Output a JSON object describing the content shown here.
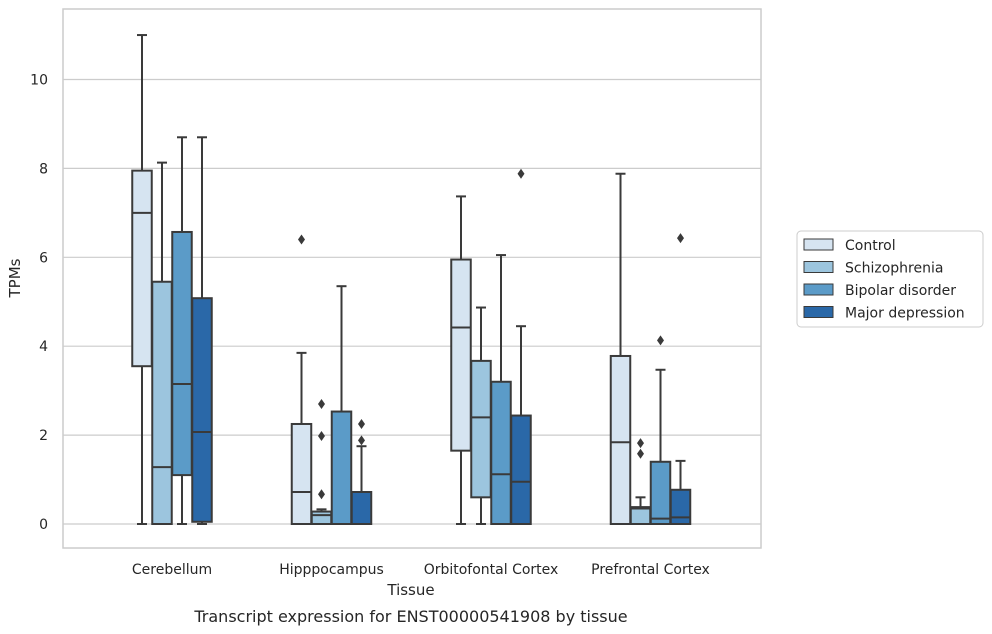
{
  "chart_data": {
    "type": "box",
    "title": "",
    "caption": "Transcript expression for ENST00000541908 by tissue",
    "xlabel": "Tissue",
    "ylabel": "TPMs",
    "ylim": [
      -0.5,
      11.6
    ],
    "yticks": [
      0,
      2,
      4,
      6,
      8,
      10
    ],
    "grid": "horizontal",
    "legend_position": "right",
    "categories": [
      "Cerebellum",
      "Hipppocampus",
      "Orbitofontal Cortex",
      "Prefrontal Cortex"
    ],
    "series": [
      {
        "name": "Control",
        "color": "#d6e4f1",
        "boxes": [
          {
            "whislo": 0,
            "q1": 3.55,
            "med": 7.0,
            "q3": 7.95,
            "whishi": 11.0,
            "fliers": []
          },
          {
            "whislo": 0,
            "q1": 0,
            "med": 0.72,
            "q3": 2.25,
            "whishi": 3.85,
            "fliers": [
              6.4
            ]
          },
          {
            "whislo": 0,
            "q1": 1.65,
            "med": 4.42,
            "q3": 5.95,
            "whishi": 7.37,
            "fliers": []
          },
          {
            "whislo": 0,
            "q1": 0,
            "med": 1.84,
            "q3": 3.78,
            "whishi": 7.88,
            "fliers": []
          }
        ]
      },
      {
        "name": "Schizophrenia",
        "color": "#9cc5de",
        "boxes": [
          {
            "whislo": 0,
            "q1": 0,
            "med": 1.28,
            "q3": 5.45,
            "whishi": 8.13,
            "fliers": []
          },
          {
            "whislo": 0,
            "q1": 0,
            "med": 0.2,
            "q3": 0.28,
            "whishi": 0.33,
            "fliers": [
              0.67,
              1.98,
              2.7
            ]
          },
          {
            "whislo": 0,
            "q1": 0.6,
            "med": 2.4,
            "q3": 3.67,
            "whishi": 4.87,
            "fliers": []
          },
          {
            "whislo": 0,
            "q1": 0,
            "med": 0.35,
            "q3": 0.38,
            "whishi": 0.6,
            "fliers": [
              1.58,
              1.82
            ]
          }
        ]
      },
      {
        "name": "Bipolar disorder",
        "color": "#5b9bc8",
        "boxes": [
          {
            "whislo": 0,
            "q1": 1.1,
            "med": 3.15,
            "q3": 6.57,
            "whishi": 8.7,
            "fliers": []
          },
          {
            "whislo": 0,
            "q1": 0,
            "med": 0,
            "q3": 2.53,
            "whishi": 5.35,
            "fliers": []
          },
          {
            "whislo": 0,
            "q1": 0,
            "med": 1.12,
            "q3": 3.2,
            "whishi": 6.05,
            "fliers": []
          },
          {
            "whislo": 0,
            "q1": 0,
            "med": 0.12,
            "q3": 1.4,
            "whishi": 3.47,
            "fliers": [
              4.13
            ]
          }
        ]
      },
      {
        "name": "Major depression",
        "color": "#2a68a8",
        "boxes": [
          {
            "whislo": 0,
            "q1": 0.05,
            "med": 2.07,
            "q3": 5.08,
            "whishi": 8.7,
            "fliers": []
          },
          {
            "whislo": 0,
            "q1": 0,
            "med": 0,
            "q3": 0.72,
            "whishi": 1.75,
            "fliers": [
              1.88,
              2.25
            ]
          },
          {
            "whislo": 0,
            "q1": 0,
            "med": 0.95,
            "q3": 2.44,
            "whishi": 4.45,
            "fliers": [
              7.88
            ]
          },
          {
            "whislo": 0,
            "q1": 0,
            "med": 0.15,
            "q3": 0.77,
            "whishi": 1.42,
            "fliers": [
              6.43
            ]
          }
        ]
      }
    ]
  }
}
